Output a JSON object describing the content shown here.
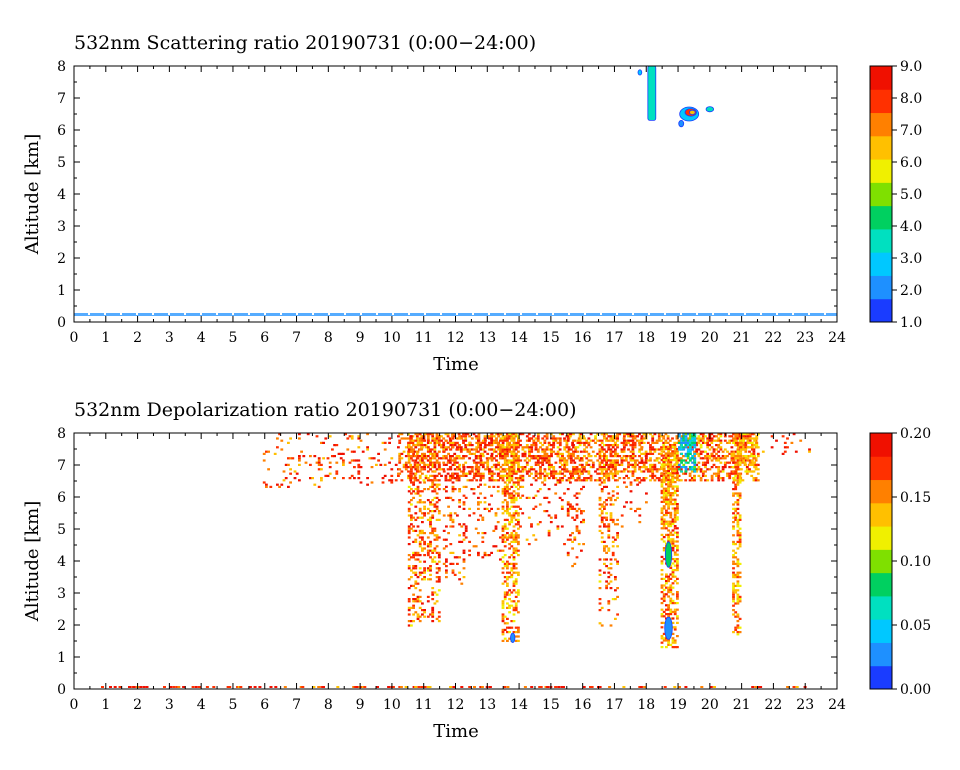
{
  "colors": {
    "scale": [
      "#1a3cff",
      "#1e90ff",
      "#00c8ff",
      "#00e0c0",
      "#00d060",
      "#7fe000",
      "#f0f000",
      "#ffc000",
      "#ff8000",
      "#ff3000",
      "#f01000"
    ],
    "axis": "#000000"
  },
  "chart_data": [
    {
      "type": "heatmap",
      "title": "532nm Scattering ratio  20190731 (0:00−24:00)",
      "xlabel": "Time",
      "ylabel": "Altitude [km]",
      "xlim": [
        0,
        24
      ],
      "ylim": [
        0,
        8
      ],
      "x_ticks": [
        "0",
        "1",
        "2",
        "3",
        "4",
        "5",
        "6",
        "7",
        "8",
        "9",
        "10",
        "11",
        "12",
        "13",
        "14",
        "15",
        "16",
        "17",
        "18",
        "19",
        "20",
        "21",
        "22",
        "23",
        "24"
      ],
      "y_ticks": [
        "0",
        "1",
        "2",
        "3",
        "4",
        "5",
        "6",
        "7",
        "8"
      ],
      "colorbar": {
        "min": 1.0,
        "max": 9.0,
        "ticks": [
          "1.0",
          "2.0",
          "3.0",
          "4.0",
          "5.0",
          "6.0",
          "7.0",
          "8.0",
          "9.0"
        ]
      },
      "features": [
        {
          "kind": "layer",
          "t0": 0,
          "t1": 24,
          "alt": 0.25,
          "value": 2.0
        },
        {
          "kind": "blob",
          "t": 17.8,
          "alt": 7.8,
          "rt": 0.06,
          "ra": 0.08,
          "value": 2.5
        },
        {
          "kind": "column",
          "t0": 18.05,
          "t1": 18.3,
          "a0": 6.3,
          "a1": 8.0,
          "value": 3.2
        },
        {
          "kind": "blob",
          "t": 19.35,
          "alt": 6.5,
          "rt": 0.3,
          "ra": 0.22,
          "value": 3.0
        },
        {
          "kind": "blob",
          "t": 19.4,
          "alt": 6.55,
          "rt": 0.18,
          "ra": 0.12,
          "value": 8.0
        },
        {
          "kind": "blob",
          "t": 19.45,
          "alt": 6.55,
          "rt": 0.09,
          "ra": 0.07,
          "value": 6.5
        },
        {
          "kind": "blob",
          "t": 19.1,
          "alt": 6.2,
          "rt": 0.08,
          "ra": 0.1,
          "value": 2.2
        },
        {
          "kind": "blob",
          "t": 20.0,
          "alt": 6.65,
          "rt": 0.12,
          "ra": 0.08,
          "value": 3.5
        }
      ]
    },
    {
      "type": "heatmap",
      "title": "532nm Depolarization ratio  20190731 (0:00−24:00)",
      "xlabel": "Time",
      "ylabel": "Altitude [km]",
      "xlim": [
        0,
        24
      ],
      "ylim": [
        0,
        8
      ],
      "x_ticks": [
        "0",
        "1",
        "2",
        "3",
        "4",
        "5",
        "6",
        "7",
        "8",
        "9",
        "10",
        "11",
        "12",
        "13",
        "14",
        "15",
        "16",
        "17",
        "18",
        "19",
        "20",
        "21",
        "22",
        "23",
        "24"
      ],
      "y_ticks": [
        "0",
        "1",
        "2",
        "3",
        "4",
        "5",
        "6",
        "7",
        "8"
      ],
      "colorbar": {
        "min": 0.0,
        "max": 0.2,
        "ticks": [
          "0.00",
          "0.05",
          "0.10",
          "0.15",
          "0.20"
        ]
      },
      "features": [
        {
          "kind": "sparse",
          "t0": 5.8,
          "t1": 10.2,
          "a0": 6.3,
          "a1": 8.0,
          "density": 0.09,
          "value": 0.17
        },
        {
          "kind": "sparse",
          "t0": 10.2,
          "t1": 21.5,
          "a0": 6.5,
          "a1": 8.0,
          "density": 0.4,
          "value": 0.16
        },
        {
          "kind": "sparse",
          "t0": 21.5,
          "t1": 23.3,
          "a0": 7.3,
          "a1": 8.0,
          "density": 0.06,
          "value": 0.17
        },
        {
          "kind": "column",
          "t0": 10.5,
          "t1": 11.05,
          "a0": 2.0,
          "a1": 8.0,
          "density": 0.5,
          "value": 0.16
        },
        {
          "kind": "column",
          "t0": 11.1,
          "t1": 11.5,
          "a0": 2.1,
          "a1": 8.0,
          "density": 0.4,
          "value": 0.16
        },
        {
          "kind": "column",
          "t0": 11.6,
          "t1": 12.3,
          "a0": 3.2,
          "a1": 8.0,
          "density": 0.22,
          "value": 0.17
        },
        {
          "kind": "column",
          "t0": 12.4,
          "t1": 13.4,
          "a0": 4.0,
          "a1": 8.0,
          "density": 0.2,
          "value": 0.17
        },
        {
          "kind": "column",
          "t0": 13.45,
          "t1": 13.95,
          "a0": 1.4,
          "a1": 8.0,
          "density": 0.6,
          "value": 0.15
        },
        {
          "kind": "blob",
          "t": 13.8,
          "alt": 1.6,
          "rt": 0.07,
          "ra": 0.15,
          "value": 0.02
        },
        {
          "kind": "column",
          "t0": 14.0,
          "t1": 15.4,
          "a0": 4.5,
          "a1": 8.0,
          "density": 0.12,
          "value": 0.17
        },
        {
          "kind": "column",
          "t0": 15.5,
          "t1": 16.0,
          "a0": 3.8,
          "a1": 8.0,
          "density": 0.22,
          "value": 0.17
        },
        {
          "kind": "column",
          "t0": 16.5,
          "t1": 17.1,
          "a0": 2.0,
          "a1": 8.0,
          "density": 0.3,
          "value": 0.16
        },
        {
          "kind": "column",
          "t0": 17.2,
          "t1": 18.0,
          "a0": 5.0,
          "a1": 8.0,
          "density": 0.18,
          "value": 0.17
        },
        {
          "kind": "column",
          "t0": 18.45,
          "t1": 18.95,
          "a0": 1.3,
          "a1": 7.6,
          "density": 0.7,
          "value": 0.15
        },
        {
          "kind": "blob",
          "t": 18.7,
          "alt": 1.9,
          "rt": 0.12,
          "ra": 0.35,
          "value": 0.03
        },
        {
          "kind": "blob",
          "t": 18.7,
          "alt": 4.2,
          "rt": 0.1,
          "ra": 0.4,
          "value": 0.08
        },
        {
          "kind": "column",
          "t0": 19.0,
          "t1": 19.55,
          "a0": 6.8,
          "a1": 8.0,
          "density": 0.85,
          "value": 0.06
        },
        {
          "kind": "column",
          "t0": 19.95,
          "t1": 20.15,
          "a0": 7.0,
          "a1": 8.0,
          "density": 0.5,
          "value": 0.16
        },
        {
          "kind": "column",
          "t0": 20.7,
          "t1": 20.95,
          "a0": 1.7,
          "a1": 8.0,
          "density": 0.6,
          "value": 0.15
        },
        {
          "kind": "column",
          "t0": 20.95,
          "t1": 21.5,
          "a0": 6.8,
          "a1": 8.0,
          "density": 0.55,
          "value": 0.15
        },
        {
          "kind": "layer",
          "t0": 0.7,
          "t1": 23.0,
          "alt": 0.03,
          "density": 0.25,
          "value": 0.17
        }
      ]
    }
  ]
}
